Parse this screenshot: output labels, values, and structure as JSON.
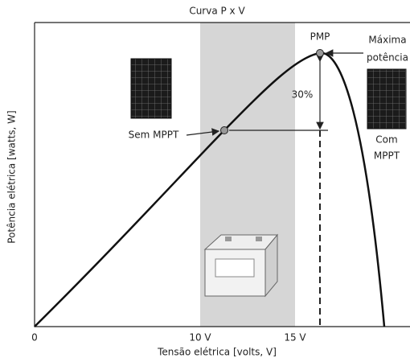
{
  "header": {
    "title": "Curva P x V"
  },
  "x_axis": {
    "label": "Tensão elétrica [volts, V]",
    "ticks": [
      "0",
      "10 V",
      "15 V"
    ]
  },
  "y_axis": {
    "label": "Potência elétrica [watts, W]"
  },
  "annotations": {
    "pmp": "PMP",
    "max_power": [
      "Máxima",
      "potência"
    ],
    "percent": "30%",
    "sem_mppt": "Sem MPPT",
    "com_mppt": [
      "Com",
      "MPPT"
    ]
  }
}
